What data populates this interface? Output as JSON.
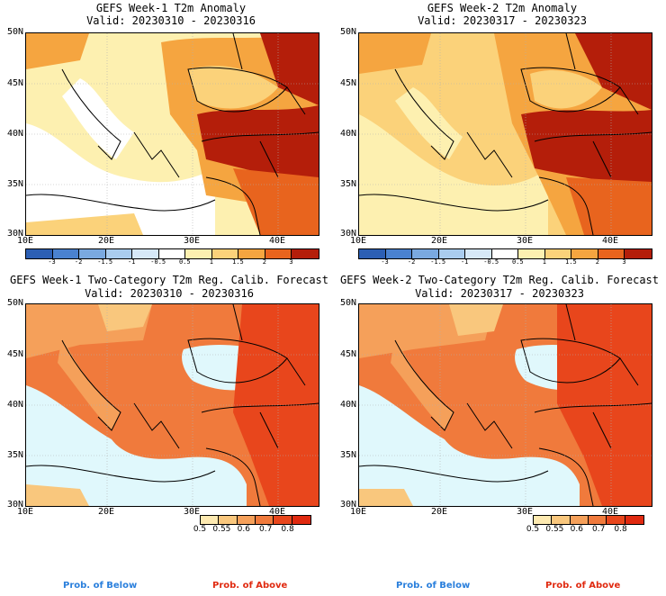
{
  "panels": [
    {
      "title": "GEFS Week-1 T2m Anomaly",
      "valid": "Valid: 20230310 - 20230316"
    },
    {
      "title": "GEFS Week-2 T2m Anomaly",
      "valid": "Valid: 20230317 - 20230323"
    },
    {
      "title": "GEFS Week-1 Two-Category T2m Reg. Calib. Forecast",
      "valid": "Valid: 20230310 - 20230316"
    },
    {
      "title": "GEFS Week-2 Two-Category T2m Reg. Calib. Forecast",
      "valid": "Valid: 20230317 - 20230323"
    }
  ],
  "axes": {
    "lat_labels": [
      "50N",
      "45N",
      "40N",
      "35N",
      "30N"
    ],
    "lon_labels": [
      "10E",
      "20E",
      "30E",
      "40E"
    ]
  },
  "anomaly_colorbar": {
    "labels": [
      "-3",
      "-2",
      "-1.5",
      "-1",
      "-0.5",
      "0.5",
      "1",
      "1.5",
      "2",
      "3"
    ],
    "colors": [
      "#2c5fb4",
      "#4a82d0",
      "#7aa9e0",
      "#aaccee",
      "#d6e8f7",
      "#ffffff",
      "#fdf0b0",
      "#fbd27a",
      "#f5a540",
      "#e8641e",
      "#b41e0a"
    ]
  },
  "prob_colorbar": {
    "labels": [
      "0.5",
      "0.55",
      "0.6",
      "0.7",
      "0.8"
    ],
    "colors": [
      "#fde9b0",
      "#f9c77d",
      "#f5a05a",
      "#f07a3c",
      "#e8461c",
      "#e02a10"
    ]
  },
  "legend": {
    "below": "Prob. of Below",
    "above": "Prob. of Above",
    "below_color": "#2a7fdc",
    "above_color": "#e02a10"
  },
  "map_colors": {
    "sea_prob": "#e0f8fc",
    "land_line": "#000000",
    "grid": "#b0b0b0"
  }
}
